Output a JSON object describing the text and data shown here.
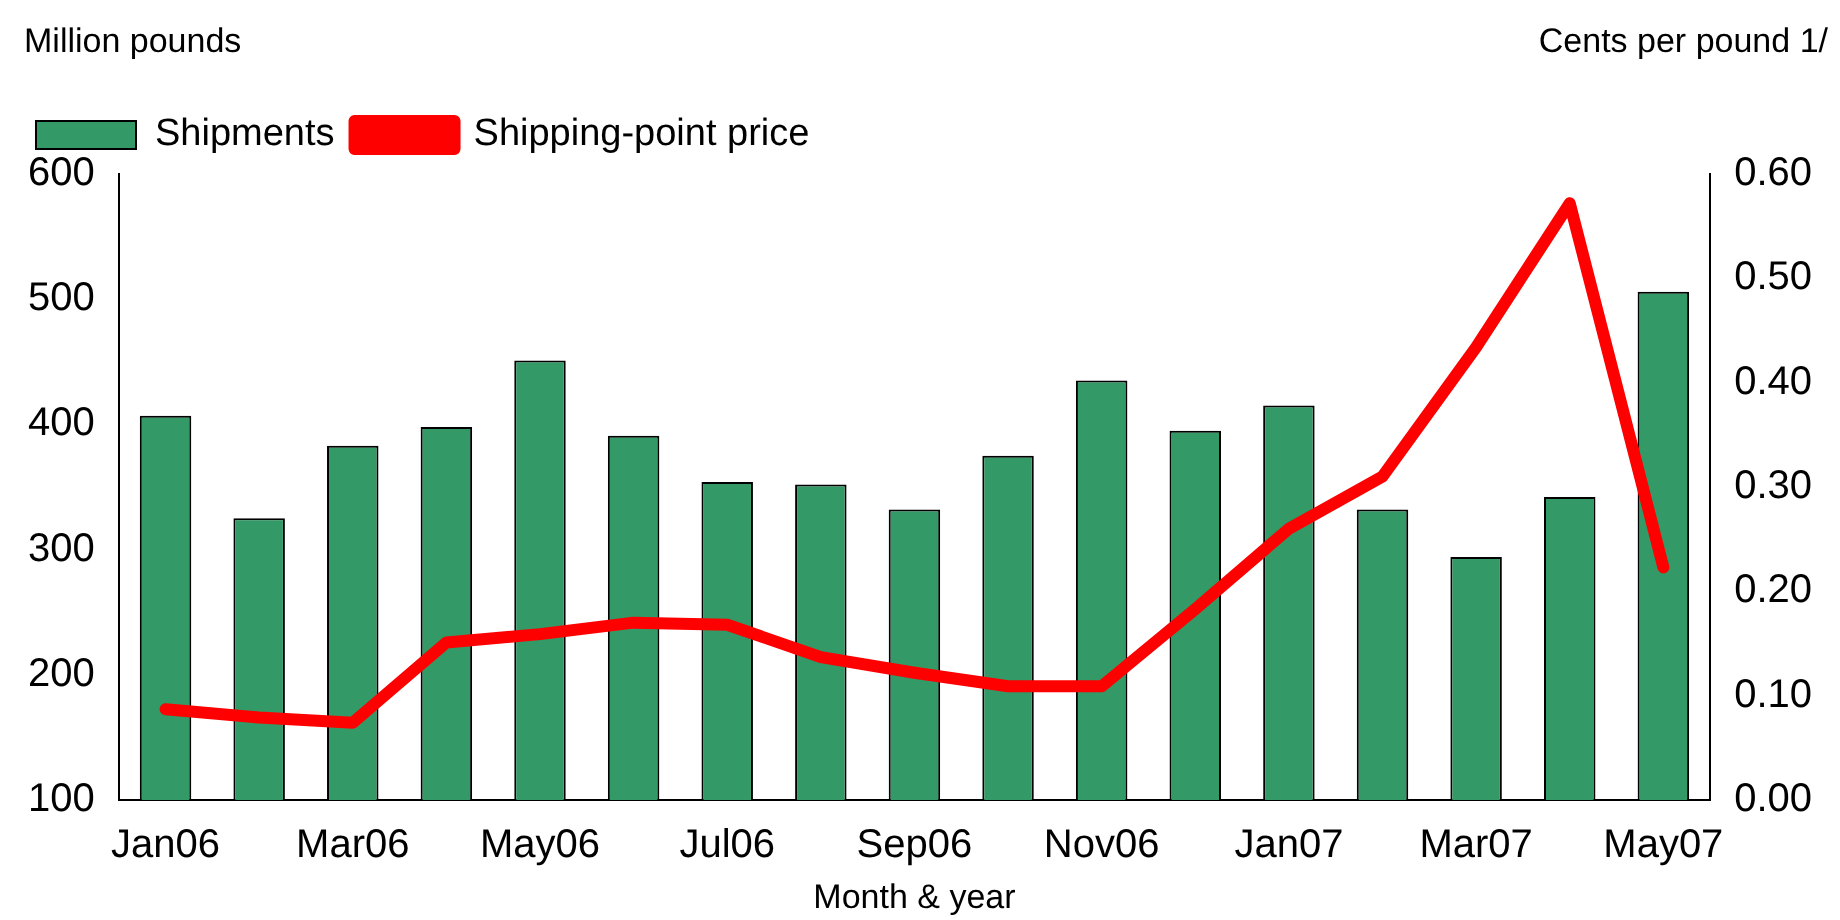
{
  "chart_data": {
    "type": "bar",
    "xlabel": "Month & year",
    "ylabel": "Million pounds",
    "y2label": "Cents per pound 1/",
    "categories": [
      "Jan06",
      null,
      "Mar06",
      null,
      "May06",
      null,
      "Jul06",
      null,
      "Sep06",
      null,
      "Nov06",
      null,
      "Jan07",
      null,
      "Mar07",
      null,
      "May07"
    ],
    "series": [
      {
        "name": "Shipments",
        "color": "#339966",
        "values": [
          407,
          325,
          383,
          398,
          451,
          391,
          354,
          352,
          332,
          375,
          435,
          395,
          415,
          332,
          294,
          342,
          506
        ]
      },
      {
        "name": "Shipping-point price",
        "type": "line",
        "axis": "y2",
        "color": "#ff0000",
        "values": [
          0.087,
          0.079,
          0.074,
          0.151,
          0.159,
          0.17,
          0.168,
          0.137,
          0.122,
          0.109,
          0.109,
          0.183,
          0.26,
          0.31,
          0.434,
          0.572,
          0.223
        ]
      }
    ],
    "ylim": [
      100,
      600
    ],
    "yticks": [
      100,
      200,
      300,
      400,
      500,
      600
    ],
    "y2lim": [
      0,
      0.6
    ],
    "y2ticks": [
      {
        "value": 0,
        "label": "0.00"
      },
      {
        "value": 0.1,
        "label": "0.10"
      },
      {
        "value": 0.2,
        "label": "0.20"
      },
      {
        "value": 0.3,
        "label": "0.30"
      },
      {
        "value": 0.4,
        "label": "0.40"
      },
      {
        "value": 0.5,
        "label": "0.50"
      },
      {
        "value": 0.6,
        "label": "0.60"
      }
    ],
    "grid": false,
    "legend": "top left",
    "marker": "none",
    "line_style": "solid"
  }
}
